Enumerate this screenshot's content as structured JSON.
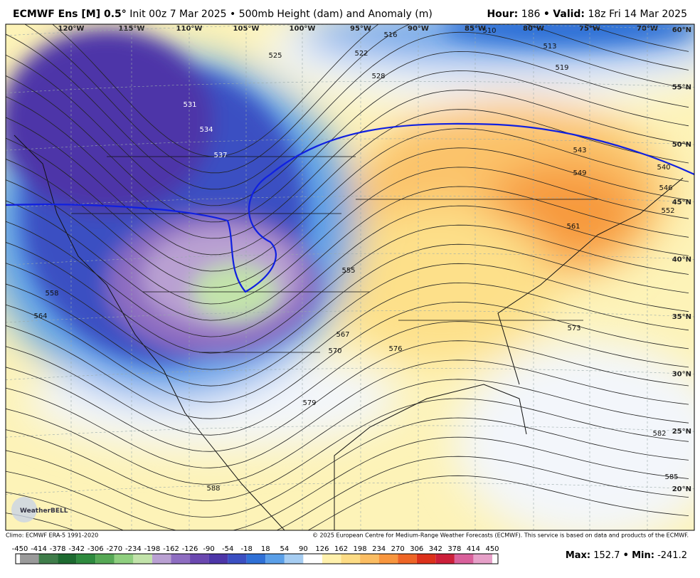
{
  "header": {
    "title_bold": "ECMWF Ens [M] 0.5°",
    "title_rest": "Init 00z 7 Mar 2025 • 500mb Height (dam) and Anomaly (m)",
    "hour_label": "Hour:",
    "hour": 186,
    "separator": "•",
    "valid_label": "Valid:",
    "valid": "18z Fri 14 Mar 2025"
  },
  "map": {
    "longitudes": [
      "120°W",
      "115°W",
      "110°W",
      "105°W",
      "100°W",
      "95°W",
      "90°W",
      "85°W",
      "80°W",
      "75°W",
      "70°W"
    ],
    "latitudes": [
      "60°N",
      "55°N",
      "50°N",
      "45°N",
      "40°N",
      "35°N",
      "30°N",
      "25°N",
      "20°N"
    ],
    "contour_labels": [
      516,
      510,
      513,
      519,
      522,
      525,
      528,
      531,
      534,
      537,
      540,
      543,
      546,
      549,
      552,
      555,
      558,
      561,
      564,
      567,
      570,
      573,
      576,
      579,
      582,
      585,
      588
    ]
  },
  "logo": "WeatherBELL",
  "footer": {
    "climo": "Climo: ECMWF ERA-5 1991-2020",
    "copyright": "© 2025 European Centre for Medium-Range Weather Forecasts (ECMWF). This service is based on data and products of the ECMWF."
  },
  "colorbar": {
    "ticks": [
      -450,
      -414,
      -378,
      -342,
      -306,
      -270,
      -234,
      -198,
      -162,
      -126,
      -90,
      -54,
      -18,
      18,
      54,
      90,
      126,
      162,
      198,
      234,
      270,
      306,
      342,
      378,
      414,
      450
    ],
    "colors": [
      "#9a9a9a",
      "#3f7d4a",
      "#1d6a30",
      "#2e8a3e",
      "#56a855",
      "#8fcf7f",
      "#c2e3aa",
      "#b9a0d2",
      "#8e6dc1",
      "#6b48b0",
      "#4d36a8",
      "#3b4fc2",
      "#2f70d6",
      "#5a9fe8",
      "#a6cdf2",
      "#ffffff",
      "#fff1ad",
      "#fddc85",
      "#fbbd62",
      "#f8963e",
      "#ee6526",
      "#dc311b",
      "#cc1f3a",
      "#d9609b",
      "#e6a0c8"
    ]
  },
  "stats": {
    "max_label": "Max:",
    "max": 152.7,
    "separator": "•",
    "min_label": "Min:",
    "min": -241.2
  }
}
